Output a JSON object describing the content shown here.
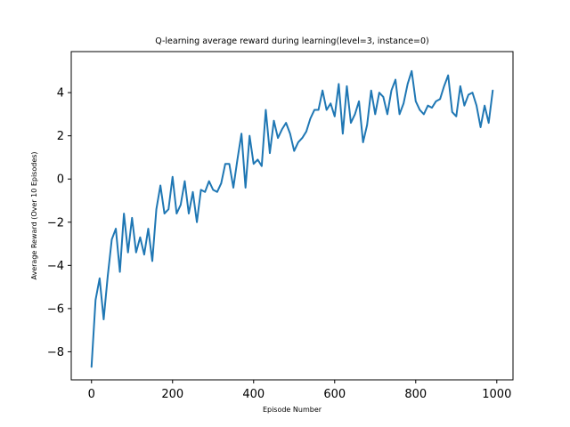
{
  "chart_data": {
    "type": "line",
    "title": "Q-learning average reward during learning(level=3, instance=0)",
    "xlabel": "Episode Number",
    "ylabel": "Average Reward (Over 10 Episodes)",
    "xlim": [
      -50,
      1040
    ],
    "ylim": [
      -9.3,
      5.9
    ],
    "xticks": [
      0,
      200,
      400,
      600,
      800,
      1000
    ],
    "yticks": [
      -8,
      -6,
      -4,
      -2,
      0,
      2,
      4
    ],
    "grid": false,
    "series_color": "#1f77b4",
    "series": [
      {
        "x": [
          0,
          10,
          20,
          30,
          40,
          50,
          60,
          70,
          80,
          90,
          100,
          110,
          120,
          130,
          140,
          150,
          160,
          170,
          180,
          190,
          200,
          210,
          220,
          230,
          240,
          250,
          260,
          270,
          280,
          290,
          300,
          310,
          320,
          330,
          340,
          350,
          360,
          370,
          380,
          390,
          400,
          410,
          420,
          430,
          440,
          450,
          460,
          470,
          480,
          490,
          500,
          510,
          520,
          530,
          540,
          550,
          560,
          570,
          580,
          590,
          600,
          610,
          620,
          630,
          640,
          650,
          660,
          670,
          680,
          690,
          700,
          710,
          720,
          730,
          740,
          750,
          760,
          770,
          780,
          790,
          800,
          810,
          820,
          830,
          840,
          850,
          860,
          870,
          880,
          890,
          900,
          910,
          920,
          930,
          940,
          950,
          960,
          970,
          980,
          990
        ],
        "values": [
          -8.7,
          -5.6,
          -4.6,
          -6.5,
          -4.5,
          -2.8,
          -2.3,
          -4.3,
          -1.6,
          -3.4,
          -1.8,
          -3.4,
          -2.7,
          -3.5,
          -2.3,
          -3.8,
          -1.4,
          -0.3,
          -1.6,
          -1.4,
          0.1,
          -1.6,
          -1.2,
          -0.1,
          -1.6,
          -0.6,
          -2.0,
          -0.5,
          -0.6,
          -0.1,
          -0.5,
          -0.6,
          -0.2,
          0.7,
          0.7,
          -0.4,
          0.9,
          2.1,
          -0.4,
          2.0,
          0.7,
          0.9,
          0.6,
          3.2,
          1.2,
          2.7,
          1.9,
          2.3,
          2.6,
          2.1,
          1.3,
          1.7,
          1.9,
          2.2,
          2.8,
          3.2,
          3.2,
          4.1,
          3.2,
          3.5,
          2.9,
          4.4,
          2.1,
          4.3,
          2.6,
          3.0,
          3.6,
          1.7,
          2.5,
          4.1,
          3.0,
          4.0,
          3.8,
          3.0,
          4.1,
          4.6,
          3.0,
          3.5,
          4.4,
          5.0,
          3.6,
          3.2,
          3.0,
          3.4,
          3.3,
          3.6,
          3.7,
          4.3,
          4.8,
          3.1,
          2.9,
          4.3,
          3.4,
          3.9,
          4.0,
          3.4,
          2.4,
          3.4,
          2.6,
          4.1
        ]
      }
    ]
  }
}
